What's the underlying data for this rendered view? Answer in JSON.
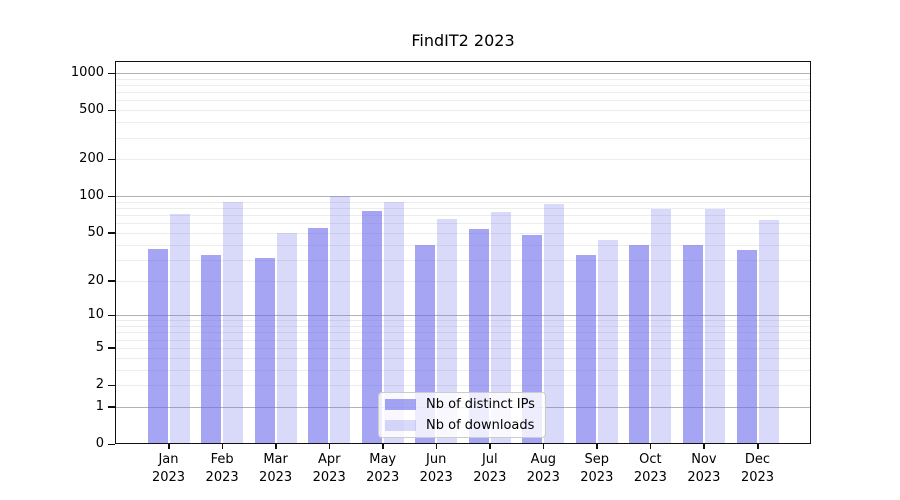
{
  "title": "FindIT2 2023",
  "chart_data": {
    "type": "bar",
    "title": "FindIT2 2023",
    "categories": [
      "Jan",
      "Feb",
      "Mar",
      "Apr",
      "May",
      "Jun",
      "Jul",
      "Aug",
      "Sep",
      "Oct",
      "Nov",
      "Dec"
    ],
    "category_year": "2023",
    "series": [
      {
        "name": "Nb of distinct IPs",
        "values": [
          37,
          33,
          31,
          55,
          75,
          40,
          54,
          48,
          33,
          40,
          40,
          36
        ],
        "alpha": 0.6
      },
      {
        "name": "Nb of downloads",
        "values": [
          71,
          90,
          50,
          100,
          90,
          65,
          74,
          87,
          44,
          78,
          78,
          64
        ],
        "alpha": 0.25
      }
    ],
    "base_color": "#6969eb",
    "yscale": "symlog",
    "yticks": [
      0,
      1,
      2,
      5,
      10,
      20,
      50,
      100,
      200,
      500,
      1000
    ],
    "ytick_labels": [
      "0",
      "1",
      "2",
      "5",
      "10",
      "20",
      "50",
      "100",
      "200",
      "500",
      "1000"
    ],
    "ylim": [
      0,
      1250
    ],
    "grid": true,
    "legend_position": "lower-center",
    "colors": {
      "major_grid": "#b3b3b3",
      "minor_grid": "#ececec",
      "frame": "#111111",
      "text": "#000000",
      "legend_border": "#cccccc"
    }
  }
}
